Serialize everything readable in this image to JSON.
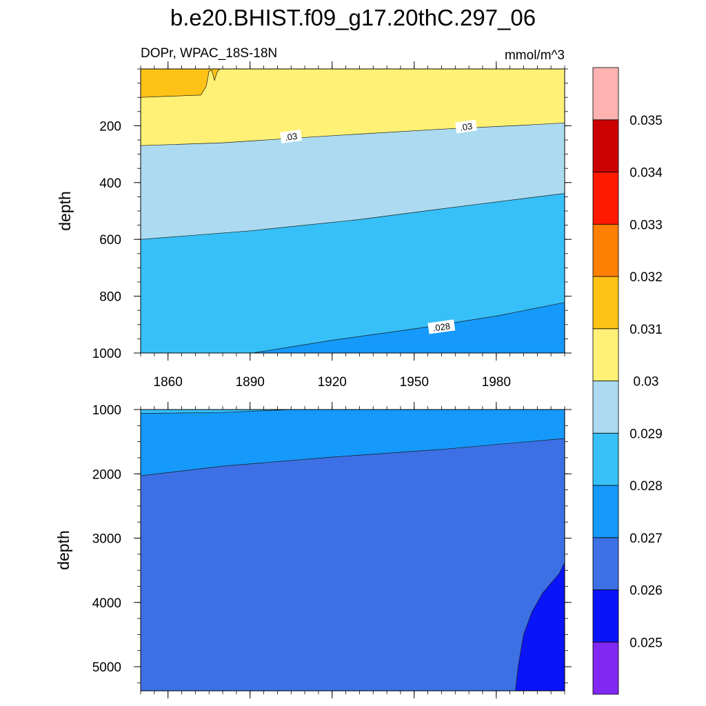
{
  "chart_data": [
    {
      "type": "contour",
      "title": "b.e20.BHIST.f09_g17.20thC.297_06",
      "subtitle_left": "DOPr, WPAC_18S-18N",
      "subtitle_right": "mmol/m^3",
      "ylabel": "depth",
      "xlim": [
        1850,
        2005
      ],
      "ylim": [
        1000,
        0
      ],
      "x_ticks": [
        1860,
        1890,
        1920,
        1950,
        1980
      ],
      "y_ticks": [
        200,
        400,
        600,
        800,
        1000
      ],
      "contour_labels": [
        {
          "text": ".03",
          "x": 1905,
          "y": 240
        },
        {
          "text": ".03",
          "x": 1969,
          "y": 205
        },
        {
          "text": ".028",
          "x": 1960,
          "y": 910
        }
      ],
      "boundaries": [
        {
          "level": 0.031,
          "points": [
            [
              1850,
              100
            ],
            [
              1872,
              92
            ],
            [
              1874,
              60
            ],
            [
              1875,
              8
            ],
            [
              1876,
              5
            ],
            [
              1877,
              40
            ],
            [
              1878,
              10
            ],
            [
              1879,
              0
            ]
          ]
        },
        {
          "level": 0.03,
          "points": [
            [
              1850,
              270
            ],
            [
              1880,
              260
            ],
            [
              1920,
              235
            ],
            [
              1960,
              212
            ],
            [
              1990,
              198
            ],
            [
              2005,
              190
            ]
          ]
        },
        {
          "level": 0.029,
          "points": [
            [
              1850,
              600
            ],
            [
              1890,
              570
            ],
            [
              1930,
              530
            ],
            [
              1970,
              480
            ],
            [
              2005,
              438
            ]
          ]
        },
        {
          "level": 0.028,
          "points": [
            [
              1891,
              1000
            ],
            [
              1920,
              955
            ],
            [
              1950,
              915
            ],
            [
              1980,
              870
            ],
            [
              2005,
              822
            ]
          ]
        }
      ],
      "regions": [
        {
          "level_range": [
            0.031,
            0.032
          ],
          "color": "#ffc216"
        },
        {
          "level_range": [
            0.03,
            0.031
          ],
          "color": "#fff175"
        },
        {
          "level_range": [
            0.029,
            0.03
          ],
          "color": "#acdbf1"
        },
        {
          "level_range": [
            0.028,
            0.029
          ],
          "color": "#37c0f7"
        },
        {
          "level_range": [
            0.027,
            0.028
          ],
          "color": "#1599fa"
        }
      ]
    },
    {
      "type": "contour",
      "ylabel": "depth",
      "xlim": [
        1850,
        2005
      ],
      "ylim": [
        5375,
        1000
      ],
      "y_ticks": [
        1000,
        2000,
        3000,
        4000,
        5000
      ],
      "boundaries": [
        {
          "level": 0.028,
          "points": [
            [
              1850,
              1060
            ],
            [
              1880,
              1045
            ],
            [
              1905,
              1000
            ]
          ]
        },
        {
          "level": 0.027,
          "points": [
            [
              1850,
              2030
            ],
            [
              1880,
              1880
            ],
            [
              1920,
              1740
            ],
            [
              1960,
              1620
            ],
            [
              2005,
              1450
            ]
          ]
        },
        {
          "level": 0.026,
          "points": [
            [
              1987,
              5375
            ],
            [
              1988,
              5000
            ],
            [
              1990,
              4500
            ],
            [
              1993,
              4150
            ],
            [
              1997,
              3850
            ],
            [
              2003,
              3550
            ],
            [
              2005,
              3380
            ]
          ]
        }
      ],
      "regions": [
        {
          "level_range": [
            0.028,
            0.029
          ],
          "color": "#37c0f7"
        },
        {
          "level_range": [
            0.027,
            0.028
          ],
          "color": "#1599fa"
        },
        {
          "level_range": [
            0.026,
            0.027
          ],
          "color": "#3c70e4"
        },
        {
          "level_range": [
            0.025,
            0.026
          ],
          "color": "#0a14f9"
        }
      ]
    }
  ],
  "colorbar": {
    "levels": [
      "0.025",
      "0.026",
      "0.027",
      "0.028",
      "0.029",
      "0.03",
      "0.031",
      "0.032",
      "0.033",
      "0.034",
      "0.035"
    ],
    "colors": [
      "#8128f2",
      "#0a14f9",
      "#3c70e4",
      "#1599fa",
      "#37c0f7",
      "#acdbf1",
      "#fff175",
      "#ffc216",
      "#ff7f00",
      "#ff1a00",
      "#cb0101",
      "#ffb2b2"
    ]
  }
}
